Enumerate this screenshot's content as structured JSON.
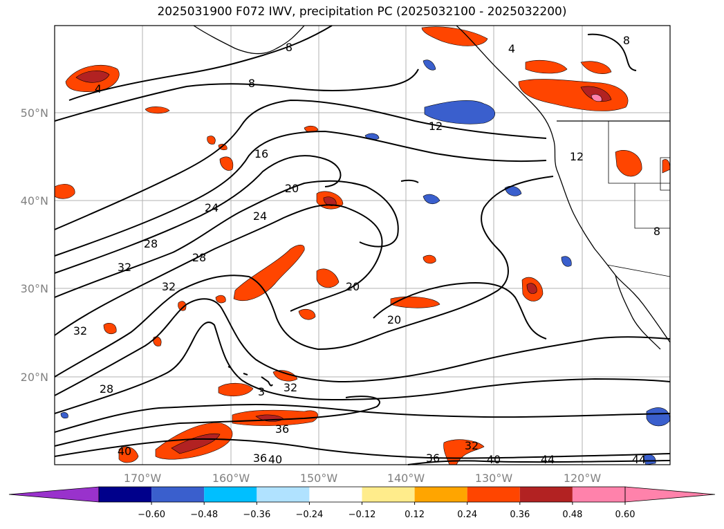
{
  "title": "2025031900 F072 IWV, precipitation PC (2025032100 - 2025032200)",
  "lat_labels": [
    "50°N",
    "40°N",
    "30°N",
    "20°N"
  ],
  "lon_labels": [
    "170°W",
    "160°W",
    "150°W",
    "140°W",
    "130°W",
    "120°W"
  ],
  "contour_labels": [
    "4",
    "8",
    "8",
    "4",
    "12",
    "12",
    "16",
    "20",
    "24",
    "24",
    "28",
    "28",
    "32",
    "32",
    "32",
    "20",
    "20",
    "32",
    "32",
    "36",
    "36",
    "40",
    "40",
    "40",
    "44",
    "44",
    "28",
    "3",
    "8",
    "8"
  ],
  "colorbar": {
    "ticks": [
      "−0.60",
      "−0.48",
      "−0.36",
      "−0.24",
      "−0.12",
      "0.12",
      "0.24",
      "0.36",
      "0.48",
      "0.60"
    ],
    "colors": [
      "#9932cc",
      "#00008b",
      "#3a5fcd",
      "#00bfff",
      "#b0e2ff",
      "#ffffff",
      "#ffec8b",
      "#ffa500",
      "#ff4500",
      "#b22222",
      "#ff82ab",
      "#ff82ab"
    ]
  },
  "colors": {
    "contour": "#000000",
    "coast": "#000000",
    "grid": "#a0a0a0",
    "precip_orange": "#ff4500",
    "precip_amber": "#ffa500",
    "precip_yellow": "#ffec8b",
    "precip_red": "#b22222",
    "precip_pink": "#ff82ab",
    "precip_blue": "#3a5fcd",
    "precip_lightblue": "#00bfff"
  }
}
